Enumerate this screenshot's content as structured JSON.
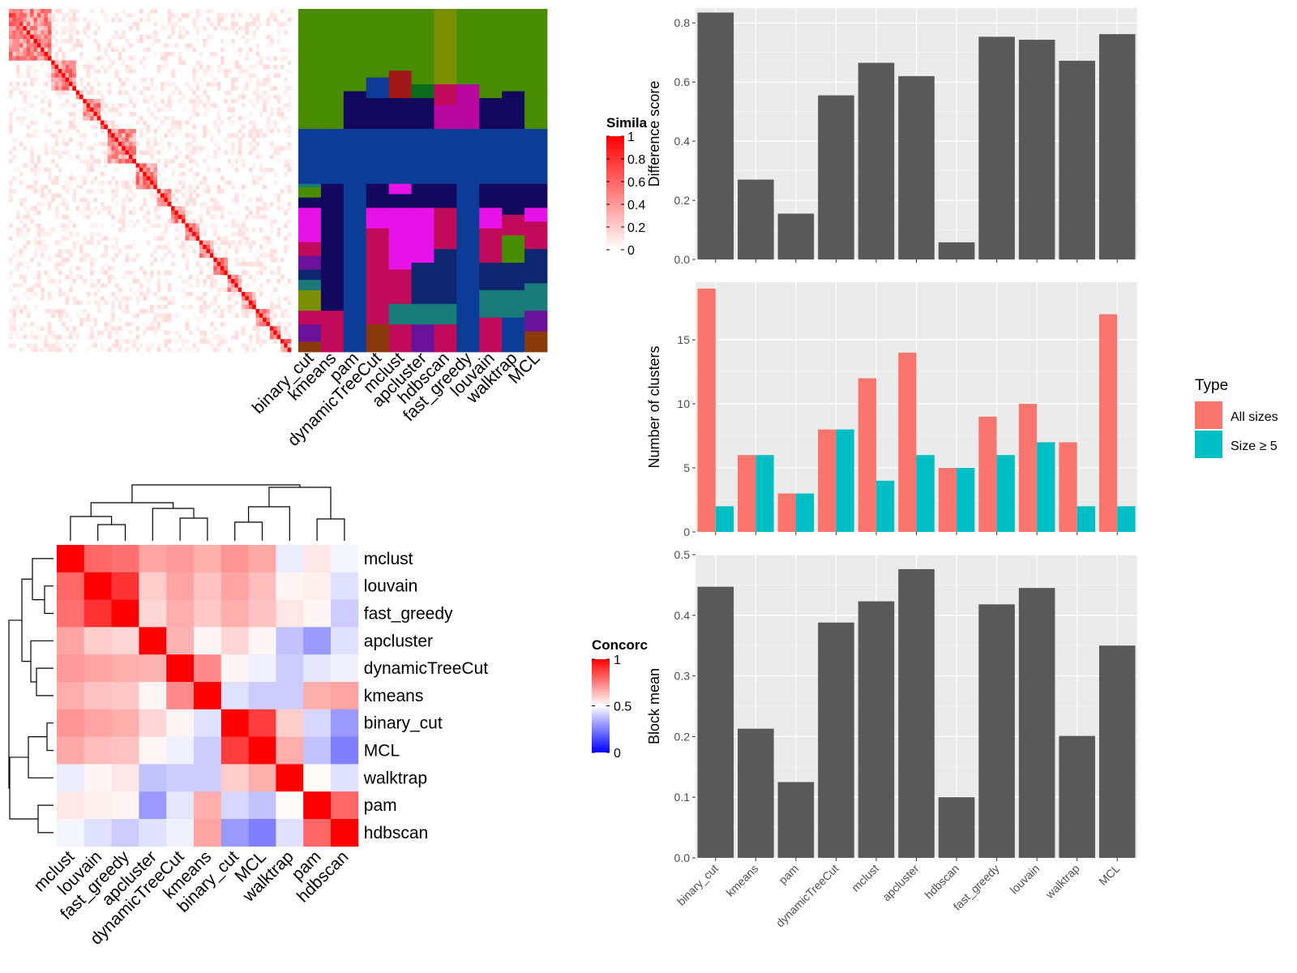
{
  "chart_data": [
    {
      "type": "heatmap",
      "name": "similarity-heatmap",
      "legend": {
        "title": "Simila",
        "ticks": [
          "1",
          "0.8",
          "0.6",
          "0.4",
          "0.2",
          "0"
        ]
      },
      "columns": [
        "binary_cut",
        "kmeans",
        "pam",
        "dynamicTreeCut",
        "mclust",
        "apcluster",
        "hdbscan",
        "fast_greedy",
        "louvain",
        "walktrap",
        "MCL"
      ]
    },
    {
      "type": "heatmap",
      "name": "concordance-heatmap",
      "legend": {
        "title": "Concorc",
        "ticks": [
          "1",
          "0.5",
          "0"
        ]
      },
      "rows": [
        "mclust",
        "louvain",
        "fast_greedy",
        "apcluster",
        "dynamicTreeCut",
        "kmeans",
        "binary_cut",
        "MCL",
        "walktrap",
        "pam",
        "hdbscan"
      ],
      "columns": [
        "mclust",
        "louvain",
        "fast_greedy",
        "apcluster",
        "dynamicTreeCut",
        "kmeans",
        "binary_cut",
        "MCL",
        "walktrap",
        "pam",
        "hdbscan"
      ],
      "values": [
        [
          1.0,
          0.8,
          0.78,
          0.68,
          0.7,
          0.66,
          0.71,
          0.67,
          0.46,
          0.55,
          0.48
        ],
        [
          0.8,
          1.0,
          0.9,
          0.6,
          0.68,
          0.62,
          0.68,
          0.63,
          0.52,
          0.53,
          0.44
        ],
        [
          0.78,
          0.9,
          1.0,
          0.58,
          0.66,
          0.61,
          0.66,
          0.62,
          0.55,
          0.52,
          0.4
        ],
        [
          0.68,
          0.6,
          0.58,
          1.0,
          0.65,
          0.52,
          0.58,
          0.52,
          0.38,
          0.3,
          0.44
        ],
        [
          0.7,
          0.68,
          0.66,
          0.65,
          1.0,
          0.73,
          0.52,
          0.47,
          0.4,
          0.45,
          0.47
        ],
        [
          0.66,
          0.62,
          0.61,
          0.52,
          0.73,
          1.0,
          0.44,
          0.4,
          0.4,
          0.66,
          0.68
        ],
        [
          0.71,
          0.68,
          0.66,
          0.58,
          0.52,
          0.44,
          1.0,
          0.88,
          0.6,
          0.42,
          0.3
        ],
        [
          0.67,
          0.63,
          0.62,
          0.52,
          0.47,
          0.4,
          0.88,
          1.0,
          0.66,
          0.38,
          0.25
        ],
        [
          0.46,
          0.52,
          0.55,
          0.38,
          0.4,
          0.4,
          0.6,
          0.66,
          1.0,
          0.51,
          0.44
        ],
        [
          0.55,
          0.53,
          0.52,
          0.3,
          0.45,
          0.66,
          0.42,
          0.38,
          0.51,
          1.0,
          0.8
        ],
        [
          0.48,
          0.44,
          0.4,
          0.44,
          0.47,
          0.68,
          0.3,
          0.25,
          0.44,
          0.8,
          1.0
        ]
      ]
    },
    {
      "type": "bar",
      "name": "difference-score",
      "categories": [
        "binary_cut",
        "kmeans",
        "pam",
        "dynamicTreeCut",
        "mclust",
        "apcluster",
        "hdbscan",
        "fast_greedy",
        "louvain",
        "walktrap",
        "MCL"
      ],
      "values": [
        0.835,
        0.27,
        0.155,
        0.555,
        0.665,
        0.62,
        0.058,
        0.753,
        0.743,
        0.672,
        0.762
      ],
      "ylabel": "Difference score",
      "ylim": [
        0,
        0.85
      ],
      "yticks": [
        "0.0",
        "0.2",
        "0.4",
        "0.6",
        "0.8"
      ]
    },
    {
      "type": "bar",
      "name": "number-of-clusters",
      "categories": [
        "binary_cut",
        "kmeans",
        "pam",
        "dynamicTreeCut",
        "mclust",
        "apcluster",
        "hdbscan",
        "fast_greedy",
        "louvain",
        "walktrap",
        "MCL"
      ],
      "series": [
        {
          "name": "All sizes",
          "values": [
            19,
            6,
            3,
            8,
            12,
            14,
            5,
            9,
            10,
            7,
            17
          ],
          "color": "#F8766D"
        },
        {
          "name": "Size ≥ 5",
          "values": [
            2,
            6,
            3,
            8,
            4,
            6,
            5,
            6,
            7,
            2,
            2
          ],
          "color": "#00BFC4"
        }
      ],
      "ylabel": "Number of clusters",
      "ylim": [
        0,
        19.5
      ],
      "yticks": [
        "0",
        "5",
        "10",
        "15"
      ],
      "legend": {
        "title": "Type",
        "position": "right"
      }
    },
    {
      "type": "bar",
      "name": "block-mean",
      "categories": [
        "binary_cut",
        "kmeans",
        "pam",
        "dynamicTreeCut",
        "mclust",
        "apcluster",
        "hdbscan",
        "fast_greedy",
        "louvain",
        "walktrap",
        "MCL"
      ],
      "values": [
        0.447,
        0.213,
        0.125,
        0.388,
        0.423,
        0.476,
        0.1,
        0.418,
        0.445,
        0.201,
        0.35
      ],
      "ylabel": "Block mean",
      "ylim": [
        0,
        0.5
      ],
      "yticks": [
        "0.0",
        "0.1",
        "0.2",
        "0.3",
        "0.4",
        "0.5"
      ]
    }
  ],
  "colors": {
    "bar": "#595959",
    "panel_bg": "#EBEBEB",
    "heat_high": "#FF0000",
    "heat_mid": "#FFFFFF",
    "heat_low": "#0000FF",
    "green": "#4A8C00",
    "dark_blue": "#0C3C96",
    "navy": "#12085E",
    "magenta": "#E812E8",
    "crimson": "#C00A5A"
  }
}
